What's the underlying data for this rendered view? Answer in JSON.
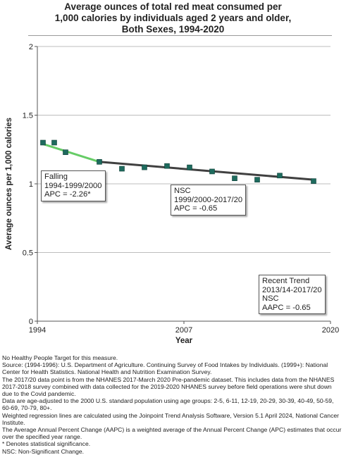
{
  "title_lines": [
    "Average ounces of total red meat consumed per",
    "1,000 calories by individuals aged 2 years and older,",
    "Both Sexes,  1994-2020"
  ],
  "chart_data": {
    "type": "scatter",
    "title": "Average ounces of total red meat consumed per 1,000 calories by individuals aged 2 years and older, Both Sexes,  1994-2020",
    "xlabel": "Year",
    "ylabel": "Average ounces per 1,000 calories",
    "xlim": [
      1994,
      2020
    ],
    "ylim": [
      0,
      2
    ],
    "x_ticks": [
      "1994",
      "2007",
      "2020"
    ],
    "y_ticks": [
      "0",
      "0.5",
      "1",
      "1.5",
      "2"
    ],
    "grid": true,
    "points": [
      {
        "x": 1994.5,
        "y": 1.3
      },
      {
        "x": 1995.5,
        "y": 1.3
      },
      {
        "x": 1996.5,
        "y": 1.23
      },
      {
        "x": 1999.5,
        "y": 1.16
      },
      {
        "x": 2001.5,
        "y": 1.11
      },
      {
        "x": 2003.5,
        "y": 1.12
      },
      {
        "x": 2005.5,
        "y": 1.13
      },
      {
        "x": 2007.5,
        "y": 1.12
      },
      {
        "x": 2009.5,
        "y": 1.09
      },
      {
        "x": 2011.5,
        "y": 1.04
      },
      {
        "x": 2013.5,
        "y": 1.03
      },
      {
        "x": 2015.5,
        "y": 1.06
      },
      {
        "x": 2018.5,
        "y": 1.02
      }
    ],
    "trend_segments": [
      {
        "x": [
          1994.5,
          1999.5
        ],
        "y": [
          1.29,
          1.16
        ],
        "color": "#66cc66"
      },
      {
        "x": [
          1999.5,
          2018.5
        ],
        "y": [
          1.16,
          1.03
        ],
        "color": "#404040"
      }
    ],
    "point_color": "#1e6b5e",
    "callouts": [
      {
        "lines": [
          "Falling",
          "1994-1999/2000",
          "APC = -2.26*"
        ]
      },
      {
        "lines": [
          "NSC",
          "1999/2000-2017/20",
          "APC = -0.65"
        ]
      },
      {
        "lines": [
          "Recent Trend",
          "2013/14-2017/20",
          "NSC",
          "AAPC = -0.65"
        ]
      }
    ]
  },
  "notes": [
    "No Healthy People Target for this measure.",
    "Source: (1994-1996): U.S. Department of Agriculture. Continuing Survey of Food Intakes by Individuals. (1999+): National Center for Health Statistics. National Health and Nutrition Examination Survey.",
    "The 2017/20 data point is from the NHANES 2017-March 2020 Pre-pandemic dataset. This includes data from the NHANES 2017-2018 survey combined with data collected for the 2019-2020 NHANES survey before field operations were shut down due to the Covid pandemic.",
    "Data are age-adjusted to the 2000 U.S. standard population using age groups: 2-5, 6-11, 12-19, 20-29, 30-39, 40-49, 50-59, 60-69, 70-79, 80+.",
    "Weighted regression lines are calculated using the Joinpoint Trend Analysis Software, Version 5.1 April 2024, National Cancer Institute.",
    "The Average Annual Percent Change (AAPC) is a weighted average of the Annual Percent Change (APC) estimates that occur over the specified year range.",
    "* Denotes statistical significance.",
    "NSC: Non-Significant Change."
  ]
}
